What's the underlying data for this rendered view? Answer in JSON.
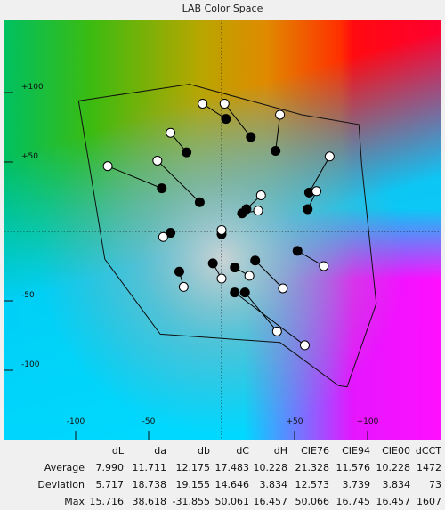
{
  "chart_data": {
    "type": "scatter",
    "title": "LAB Color Space",
    "xlabel": "",
    "ylabel": "",
    "xlim": [
      -107,
      114
    ],
    "ylim": [
      -130,
      110
    ],
    "x_ticks": [
      {
        "value": -100,
        "label": "-100"
      },
      {
        "value": -50,
        "label": "-50"
      },
      {
        "value": 50,
        "label": "+50"
      },
      {
        "value": 100,
        "label": "+100"
      }
    ],
    "y_ticks": [
      {
        "value": 100,
        "label": "+100"
      },
      {
        "value": 50,
        "label": "+50"
      },
      {
        "value": -50,
        "label": "-50"
      },
      {
        "value": -100,
        "label": "-100"
      }
    ],
    "gamut_outline": [
      [
        -98,
        94
      ],
      [
        -22,
        106
      ],
      [
        55,
        84
      ],
      [
        94,
        77
      ],
      [
        96,
        48
      ],
      [
        106,
        -52
      ],
      [
        86,
        -112
      ],
      [
        80,
        -111
      ],
      [
        40,
        -80
      ],
      [
        -42,
        -74
      ],
      [
        -80,
        -20
      ],
      [
        -98,
        94
      ]
    ],
    "measurement_pairs": [
      {
        "target": [
          -13,
          92
        ],
        "measured": [
          3,
          81
        ]
      },
      {
        "target": [
          2,
          92
        ],
        "measured": [
          20,
          68
        ]
      },
      {
        "target": [
          40,
          84
        ],
        "measured": [
          37,
          58
        ]
      },
      {
        "target": [
          -35,
          71
        ],
        "measured": [
          -24,
          57
        ]
      },
      {
        "target": [
          -78,
          47
        ],
        "measured": [
          -41,
          31
        ]
      },
      {
        "target": [
          -44,
          51
        ],
        "measured": [
          -15,
          21
        ]
      },
      {
        "target": [
          74,
          54
        ],
        "measured": [
          60,
          28
        ]
      },
      {
        "target": [
          65,
          29
        ],
        "measured": [
          59,
          16
        ]
      },
      {
        "target": [
          27,
          26
        ],
        "measured": [
          17,
          16
        ]
      },
      {
        "target": [
          25,
          15
        ],
        "measured": [
          14,
          13
        ]
      },
      {
        "target": [
          -40,
          -4
        ],
        "measured": [
          -35,
          -1
        ]
      },
      {
        "target": [
          0,
          1
        ],
        "measured": [
          0,
          -2
        ]
      },
      {
        "target": [
          -26,
          -40
        ],
        "measured": [
          -29,
          -29
        ]
      },
      {
        "target": [
          0,
          -34
        ],
        "measured": [
          -6,
          -23
        ]
      },
      {
        "target": [
          19,
          -32
        ],
        "measured": [
          9,
          -26
        ]
      },
      {
        "target": [
          42,
          -41
        ],
        "measured": [
          23,
          -21
        ]
      },
      {
        "target": [
          70,
          -25
        ],
        "measured": [
          52,
          -14
        ]
      },
      {
        "target": [
          38,
          -72
        ],
        "measured": [
          16,
          -44
        ]
      },
      {
        "target": [
          57,
          -82
        ],
        "measured": [
          9,
          -44
        ]
      }
    ],
    "grid": false,
    "crosshair": true
  },
  "stats": {
    "columns": [
      "dL",
      "da",
      "db",
      "dC",
      "dH",
      "CIE76",
      "CIE94",
      "CIE00",
      "dCCT"
    ],
    "rows": [
      {
        "label": "Average",
        "values": [
          "7.990",
          "11.711",
          "12.175",
          "17.483",
          "10.228",
          "21.328",
          "11.576",
          "10.228",
          "1472"
        ]
      },
      {
        "label": "Deviation",
        "values": [
          "5.717",
          "18.738",
          "19.155",
          "14.646",
          "3.834",
          "12.573",
          "3.739",
          "3.834",
          "73"
        ]
      },
      {
        "label": "Max",
        "values": [
          "15.716",
          "38.618",
          "-31.855",
          "50.061",
          "16.457",
          "50.066",
          "16.745",
          "16.457",
          "1607"
        ]
      }
    ]
  }
}
